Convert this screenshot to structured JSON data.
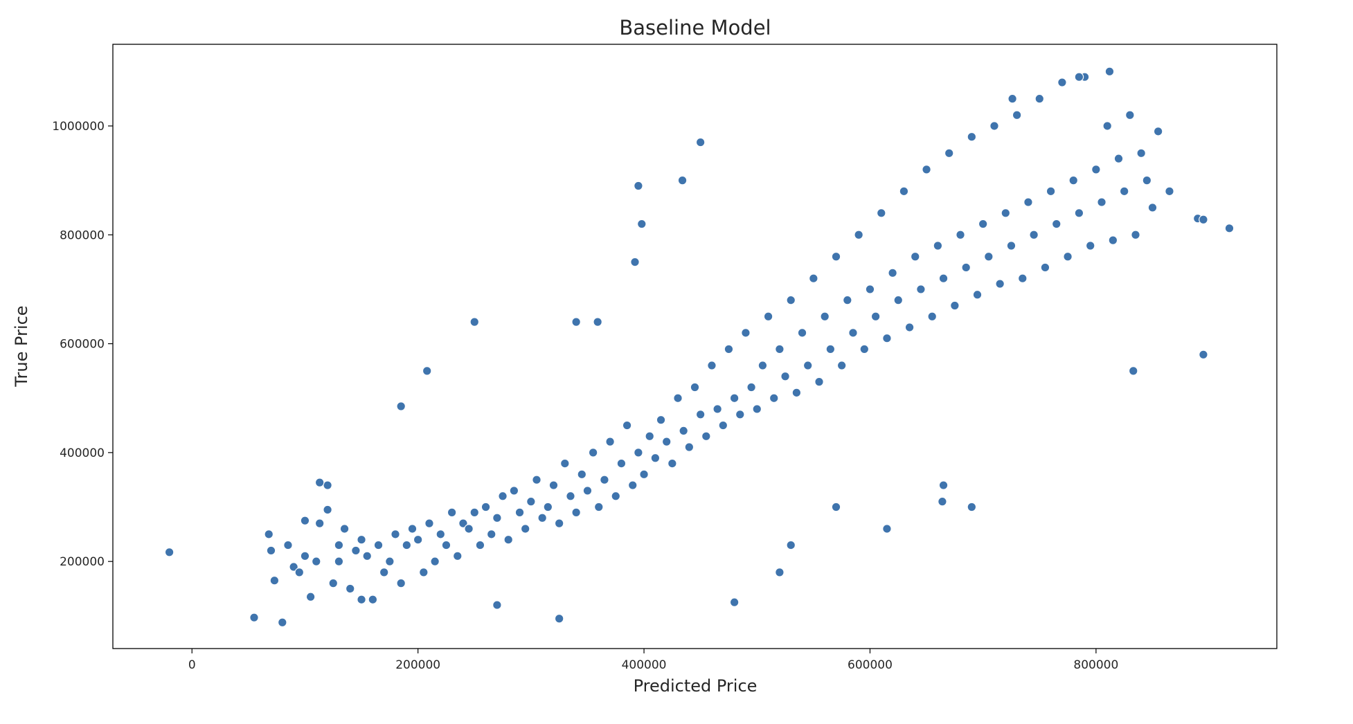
{
  "chart_data": {
    "type": "scatter",
    "title": "Baseline Model",
    "xlabel": "Predicted Price",
    "ylabel": "True Price",
    "xlim": [
      -70000,
      960000
    ],
    "ylim": [
      40000,
      1150000
    ],
    "xticks": [
      0,
      200000,
      400000,
      600000,
      800000
    ],
    "xtick_labels": [
      "0",
      "200000",
      "400000",
      "600000",
      "800000"
    ],
    "yticks": [
      200000,
      400000,
      600000,
      800000,
      1000000
    ],
    "ytick_labels": [
      "200000",
      "400000",
      "600000",
      "800000",
      "1000000"
    ],
    "grid": false,
    "legend": "none",
    "marker_color": "#3f74ad",
    "marker_edge_color": "#ffffff",
    "series": [
      {
        "x": [
          -20000,
          55000,
          68000,
          70000,
          73000,
          80000,
          85000,
          90000,
          95000,
          100000,
          105000,
          110000,
          113000,
          120000,
          125000,
          130000,
          135000,
          140000,
          145000,
          150000,
          155000,
          160000,
          165000,
          170000,
          175000,
          180000,
          185000,
          190000,
          195000,
          200000,
          205000,
          210000,
          215000,
          220000,
          225000,
          230000,
          235000,
          240000,
          245000,
          250000,
          255000,
          260000,
          265000,
          270000,
          275000,
          280000,
          285000,
          290000,
          295000,
          300000,
          305000,
          310000,
          315000,
          320000,
          325000,
          330000,
          335000,
          340000,
          345000,
          350000,
          355000,
          360000,
          365000,
          370000,
          375000,
          380000,
          385000,
          390000,
          395000,
          400000,
          405000,
          410000,
          415000,
          420000,
          425000,
          430000,
          435000,
          440000,
          445000,
          450000,
          455000,
          460000,
          465000,
          470000,
          475000,
          480000,
          485000,
          490000,
          495000,
          500000,
          505000,
          510000,
          515000,
          520000,
          525000,
          530000,
          535000,
          540000,
          545000,
          550000,
          555000,
          560000,
          565000,
          570000,
          575000,
          580000,
          585000,
          590000,
          595000,
          600000,
          605000,
          610000,
          615000,
          620000,
          625000,
          630000,
          635000,
          640000,
          645000,
          650000,
          655000,
          660000,
          665000,
          670000,
          675000,
          680000,
          685000,
          690000,
          695000,
          700000,
          705000,
          710000,
          715000,
          720000,
          725000,
          730000,
          735000,
          740000,
          745000,
          750000,
          755000,
          760000,
          765000,
          770000,
          775000,
          780000,
          785000,
          790000,
          795000,
          800000,
          805000,
          810000,
          815000,
          820000,
          825000,
          830000,
          835000,
          840000,
          845000,
          850000,
          855000,
          865000,
          890000,
          895000,
          918000,
          895000,
          833000,
          785000,
          812000,
          726000,
          690000,
          664000,
          665000,
          615000,
          570000,
          530000,
          520000,
          480000,
          450000,
          434000,
          395000,
          398000,
          392000,
          359000,
          340000,
          325000,
          270000,
          250000,
          208000,
          185000,
          120000,
          113000,
          100000,
          130000,
          150000
        ],
        "y": [
          217000,
          97000,
          250000,
          220000,
          165000,
          88000,
          230000,
          190000,
          180000,
          210000,
          135000,
          200000,
          270000,
          340000,
          160000,
          200000,
          260000,
          150000,
          220000,
          240000,
          210000,
          130000,
          230000,
          180000,
          200000,
          250000,
          160000,
          230000,
          260000,
          240000,
          180000,
          270000,
          200000,
          250000,
          230000,
          290000,
          210000,
          270000,
          260000,
          290000,
          230000,
          300000,
          250000,
          280000,
          320000,
          240000,
          330000,
          290000,
          260000,
          310000,
          350000,
          280000,
          300000,
          340000,
          270000,
          380000,
          320000,
          290000,
          360000,
          330000,
          400000,
          300000,
          350000,
          420000,
          320000,
          380000,
          450000,
          340000,
          400000,
          360000,
          430000,
          390000,
          460000,
          420000,
          380000,
          500000,
          440000,
          410000,
          520000,
          470000,
          430000,
          560000,
          480000,
          450000,
          590000,
          500000,
          470000,
          620000,
          520000,
          480000,
          560000,
          650000,
          500000,
          590000,
          540000,
          680000,
          510000,
          620000,
          560000,
          720000,
          530000,
          650000,
          590000,
          760000,
          560000,
          680000,
          620000,
          800000,
          590000,
          700000,
          650000,
          840000,
          610000,
          730000,
          680000,
          880000,
          630000,
          760000,
          700000,
          920000,
          650000,
          780000,
          720000,
          950000,
          670000,
          800000,
          740000,
          980000,
          690000,
          820000,
          760000,
          1000000,
          710000,
          840000,
          780000,
          1020000,
          720000,
          860000,
          800000,
          1050000,
          740000,
          880000,
          820000,
          1080000,
          760000,
          900000,
          840000,
          1090000,
          780000,
          920000,
          860000,
          1000000,
          790000,
          940000,
          880000,
          1020000,
          800000,
          950000,
          900000,
          850000,
          990000,
          880000,
          830000,
          828000,
          812000,
          580000,
          550000,
          1090000,
          1100000,
          1050000,
          300000,
          310000,
          340000,
          260000,
          300000,
          230000,
          180000,
          125000,
          970000,
          900000,
          890000,
          820000,
          750000,
          640000,
          640000,
          95000,
          120000,
          640000,
          550000,
          485000,
          295000,
          345000,
          275000,
          230000,
          130000
        ]
      }
    ]
  }
}
